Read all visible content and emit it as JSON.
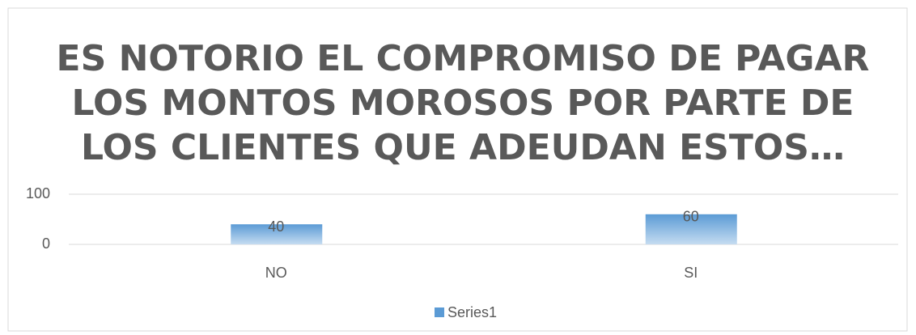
{
  "chart_data": {
    "type": "bar",
    "title": [
      "ES NOTORIO EL COMPROMISO DE PAGAR",
      "LOS MONTOS MOROSOS POR PARTE DE",
      "LOS CLIENTES QUE ADEUDAN ESTOS…"
    ],
    "categories": [
      "NO",
      "SI"
    ],
    "series": [
      {
        "name": "Series1",
        "color": "#5b9bd5",
        "values": [
          40,
          60
        ]
      }
    ],
    "ylim": [
      0,
      100
    ],
    "yticks": [
      0,
      100
    ],
    "grid": true,
    "legend": "bottom"
  }
}
